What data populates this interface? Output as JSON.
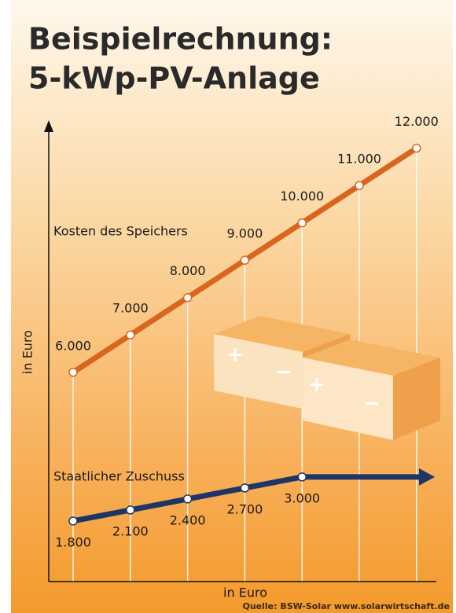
{
  "chart_data": {
    "type": "line",
    "title": "Beispielrechnung:",
    "subtitle": "5-kWp-PV-Anlage",
    "y_label": "in Euro",
    "x_label": "in Euro",
    "source": "Quelle: BSW-Solar www.solarwirtschaft.de",
    "categories": [
      null,
      null,
      null,
      null,
      null,
      null,
      null
    ],
    "ylim": [
      400,
      12600
    ],
    "y2lim": [
      150,
      12570
    ],
    "series": [
      {
        "name": "Kosten des Speichers",
        "color": "#d9661f",
        "values": [
          6000,
          7000,
          8000,
          9000,
          10000,
          11000,
          12000
        ],
        "value_labels": [
          "6.000",
          "7.000",
          "8.000",
          "9.000",
          "10.000",
          "11.000",
          "12.000"
        ]
      },
      {
        "name": "Staatlicher Zuschuss",
        "color": "#1f3566",
        "axis": "y2",
        "values": [
          1800,
          2100,
          2400,
          2700,
          3000,
          null,
          null
        ],
        "value_labels": [
          "1.800",
          "2.100",
          "2.400",
          "2.700",
          "3.000",
          null,
          null
        ]
      }
    ]
  }
}
